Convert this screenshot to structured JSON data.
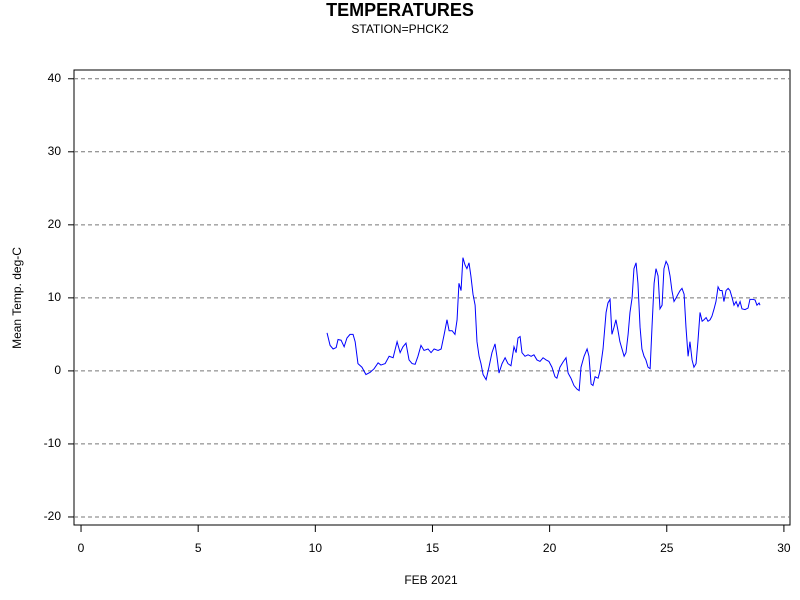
{
  "chart_data": {
    "type": "line",
    "title": "TEMPERATURES",
    "subtitle": "STATION=PHCK2",
    "x_label": "FEB 2021",
    "y_label": "Mean Temp. deg-C",
    "xlim": [
      -0.3,
      30.26
    ],
    "xticks": [
      0,
      5,
      10,
      15,
      20,
      25,
      30
    ],
    "ylim": [
      -21.1,
      41.2
    ],
    "yticks": [
      -20,
      -10,
      0,
      10,
      20,
      30,
      40
    ],
    "grid": true,
    "series": [
      {
        "color": "#0000ff",
        "x": [
          10.5,
          10.63,
          10.76,
          10.89,
          10.97,
          11.1,
          11.23,
          11.35,
          11.48,
          11.61,
          11.7,
          11.82,
          11.99,
          12.16,
          12.34,
          12.51,
          12.68,
          12.8,
          12.98,
          13.15,
          13.32,
          13.49,
          13.62,
          13.74,
          13.87,
          14.0,
          14.13,
          14.26,
          14.38,
          14.51,
          14.64,
          14.81,
          14.94,
          15.07,
          15.24,
          15.37,
          15.5,
          15.62,
          15.71,
          15.84,
          15.96,
          16.05,
          16.13,
          16.22,
          16.3,
          16.39,
          16.47,
          16.56,
          16.64,
          16.73,
          16.82,
          16.9,
          16.99,
          17.07,
          17.16,
          17.29,
          17.41,
          17.54,
          17.67,
          17.75,
          17.84,
          17.97,
          18.1,
          18.22,
          18.35,
          18.48,
          18.57,
          18.65,
          18.74,
          18.82,
          18.95,
          19.08,
          19.21,
          19.33,
          19.46,
          19.59,
          19.72,
          19.85,
          19.97,
          20.1,
          20.23,
          20.31,
          20.44,
          20.57,
          20.7,
          20.79,
          20.91,
          21.04,
          21.17,
          21.26,
          21.34,
          21.47,
          21.6,
          21.68,
          21.77,
          21.85,
          21.94,
          22.07,
          22.15,
          22.28,
          22.41,
          22.49,
          22.58,
          22.66,
          22.75,
          22.83,
          22.92,
          23.0,
          23.09,
          23.18,
          23.26,
          23.35,
          23.43,
          23.52,
          23.6,
          23.69,
          23.77,
          23.86,
          23.94,
          24.03,
          24.11,
          24.2,
          24.29,
          24.37,
          24.46,
          24.54,
          24.63,
          24.71,
          24.8,
          24.88,
          24.97,
          25.05,
          25.14,
          25.22,
          25.31,
          25.4,
          25.48,
          25.57,
          25.65,
          25.74,
          25.82,
          25.91,
          25.99,
          26.08,
          26.16,
          26.25,
          26.33,
          26.42,
          26.51,
          26.59,
          26.68,
          26.76,
          26.85,
          26.93,
          27.02,
          27.1,
          27.19,
          27.27,
          27.36,
          27.44,
          27.53,
          27.62,
          27.7,
          27.79,
          27.87,
          27.96,
          28.04,
          28.13,
          28.21,
          28.34,
          28.47,
          28.55,
          28.68,
          28.77,
          28.85,
          28.94,
          28.98
        ],
        "values": [
          5.2,
          3.5,
          3.0,
          3.2,
          4.3,
          4.2,
          3.3,
          4.5,
          5.0,
          5.0,
          4.0,
          1.0,
          0.5,
          -0.5,
          -0.2,
          0.3,
          1.1,
          0.8,
          1.0,
          2.0,
          1.8,
          4.0,
          2.5,
          3.3,
          3.8,
          1.5,
          1.0,
          0.9,
          2.0,
          3.5,
          2.8,
          3.0,
          2.5,
          3.0,
          2.8,
          3.0,
          5.0,
          7.0,
          5.5,
          5.5,
          5.0,
          7.0,
          12.0,
          11.0,
          15.5,
          14.5,
          14.0,
          14.8,
          13.0,
          10.5,
          9.0,
          4.0,
          2.0,
          1.0,
          -0.5,
          -1.2,
          0.5,
          2.5,
          3.7,
          2.0,
          -0.3,
          1.0,
          1.8,
          1.0,
          0.7,
          3.3,
          2.5,
          4.5,
          4.7,
          2.5,
          2.0,
          2.2,
          2.0,
          2.2,
          1.5,
          1.3,
          1.8,
          1.5,
          1.3,
          0.5,
          -0.8,
          -1.0,
          0.5,
          1.2,
          1.8,
          -0.3,
          -1.0,
          -2.0,
          -2.5,
          -2.7,
          0.5,
          2.0,
          3.0,
          2.0,
          -1.8,
          -2.0,
          -0.8,
          -1.0,
          0,
          3.0,
          8.0,
          9.3,
          9.8,
          5.0,
          6.0,
          7.0,
          5.5,
          4.0,
          3.0,
          2.0,
          2.5,
          5.0,
          8.0,
          10.0,
          14.0,
          14.8,
          12.0,
          6.0,
          3.0,
          2.0,
          1.5,
          0.5,
          0.3,
          6.0,
          12.0,
          14.0,
          13.0,
          8.5,
          9.0,
          14.0,
          15.0,
          14.5,
          13.0,
          11.0,
          9.5,
          10.0,
          10.5,
          11.0,
          11.3,
          10.5,
          6.0,
          2.0,
          4.0,
          1.5,
          0.5,
          1.0,
          4.0,
          8.0,
          6.8,
          7.0,
          7.3,
          6.8,
          7.0,
          7.5,
          8.5,
          9.5,
          11.5,
          11.0,
          11.0,
          9.5,
          11.0,
          11.3,
          11.0,
          10.0,
          9.0,
          9.5,
          8.8,
          9.5,
          8.5,
          8.4,
          8.6,
          9.8,
          9.8,
          9.7,
          9.0,
          9.3,
          9.0
        ]
      }
    ]
  }
}
